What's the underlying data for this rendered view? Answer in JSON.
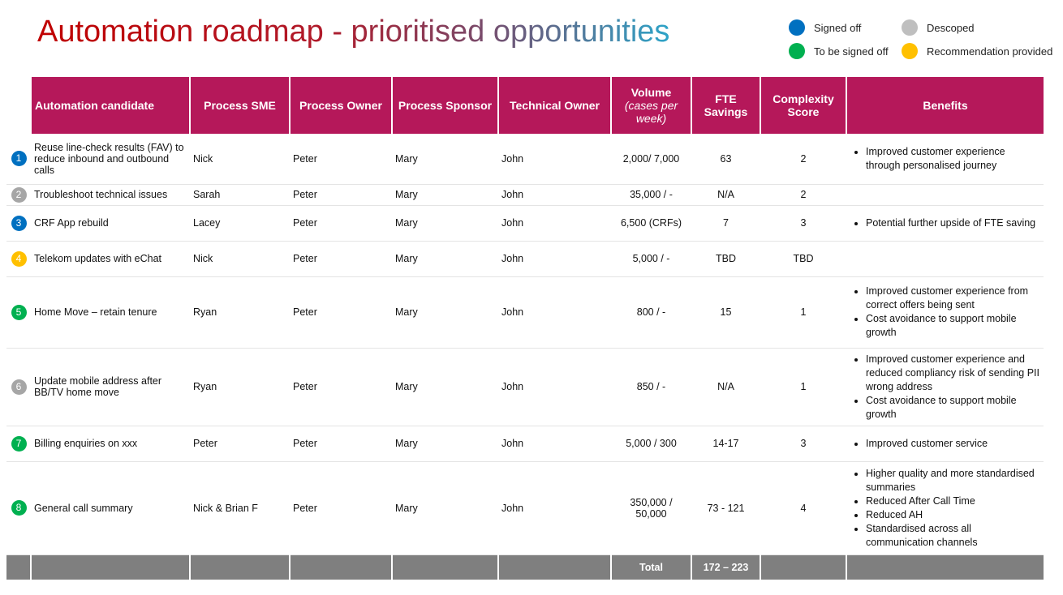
{
  "title": "Automation roadmap - prioritised opportunities",
  "colors": {
    "signed_off": "#0070c0",
    "to_be_signed_off": "#00b050",
    "descoped": "#bfbfbf",
    "recommendation": "#ffc000",
    "header": "#b5185a"
  },
  "legend": [
    {
      "label": "Signed off",
      "color": "#0070c0"
    },
    {
      "label": "To be signed off",
      "color": "#00b050"
    },
    {
      "label": "Descoped",
      "color": "#bfbfbf"
    },
    {
      "label": "Recommendation provided",
      "color": "#ffc000"
    }
  ],
  "headers": {
    "candidate": "Automation candidate",
    "sme": "Process SME",
    "owner": "Process Owner",
    "sponsor": "Process Sponsor",
    "tech": "Technical Owner",
    "volume": "Volume",
    "volume_sub": "(cases per week)",
    "fte": "FTE Savings",
    "complexity": "Complexity Score",
    "benefits": "Benefits"
  },
  "rows": [
    {
      "n": "1",
      "color": "#0070c0",
      "candidate": "Reuse line-check results (FAV) to reduce inbound and outbound calls",
      "sme": "Nick",
      "owner": "Peter",
      "sponsor": "Mary",
      "tech": "John",
      "volume": "2,000/ 7,000",
      "fte": "63",
      "complexity": "2",
      "benefits": [
        "Improved customer experience through personalised journey"
      ]
    },
    {
      "n": "2",
      "color": "#a6a6a6",
      "candidate": "Troubleshoot technical issues",
      "sme": "Sarah",
      "owner": "Peter",
      "sponsor": "Mary",
      "tech": "John",
      "volume": "35,000 / -",
      "fte": "N/A",
      "complexity": "2",
      "benefits": []
    },
    {
      "n": "3",
      "color": "#0070c0",
      "candidate": "CRF App rebuild",
      "sme": "Lacey",
      "owner": "Peter",
      "sponsor": "Mary",
      "tech": "John",
      "volume": "6,500 (CRFs)",
      "fte": "7",
      "complexity": "3",
      "benefits": [
        "Potential further upside of FTE saving"
      ]
    },
    {
      "n": "4",
      "color": "#ffc000",
      "candidate": "Telekom updates with eChat",
      "sme": "Nick",
      "owner": "Peter",
      "sponsor": "Mary",
      "tech": "John",
      "volume": "5,000 / -",
      "fte": "TBD",
      "complexity": "TBD",
      "benefits": []
    },
    {
      "n": "5",
      "color": "#00b050",
      "candidate": "Home Move – retain tenure",
      "sme": "Ryan",
      "owner": "Peter",
      "sponsor": "Mary",
      "tech": "John",
      "volume": "800 / -",
      "fte": "15",
      "complexity": "1",
      "benefits": [
        "Improved customer experience from correct offers being sent",
        "Cost avoidance to support mobile growth"
      ]
    },
    {
      "n": "6",
      "color": "#a6a6a6",
      "candidate": "Update mobile address after BB/TV home move",
      "sme": "Ryan",
      "owner": "Peter",
      "sponsor": "Mary",
      "tech": "John",
      "volume": "850 / -",
      "fte": "N/A",
      "complexity": "1",
      "benefits": [
        "Improved customer experience and reduced compliancy risk of sending PII wrong address",
        "Cost avoidance to support mobile growth"
      ]
    },
    {
      "n": "7",
      "color": "#00b050",
      "candidate": "Billing enquiries on xxx",
      "sme": "Peter",
      "owner": "Peter",
      "sponsor": "Mary",
      "tech": "John",
      "volume": "5,000 / 300",
      "fte": "14-17",
      "complexity": "3",
      "benefits": [
        "Improved customer service"
      ]
    },
    {
      "n": "8",
      "color": "#00b050",
      "candidate": "General call summary",
      "sme": "Nick & Brian F",
      "owner": "Peter",
      "sponsor": "Mary",
      "tech": "John",
      "volume": "350,000 / 50,000",
      "fte": "73 - 121",
      "complexity": "4",
      "benefits": [
        "Higher quality and more standardised summaries",
        "Reduced After Call Time",
        "Reduced AH",
        "Standardised across all communication channels"
      ]
    }
  ],
  "total": {
    "label": "Total",
    "fte": "172 – 223"
  }
}
